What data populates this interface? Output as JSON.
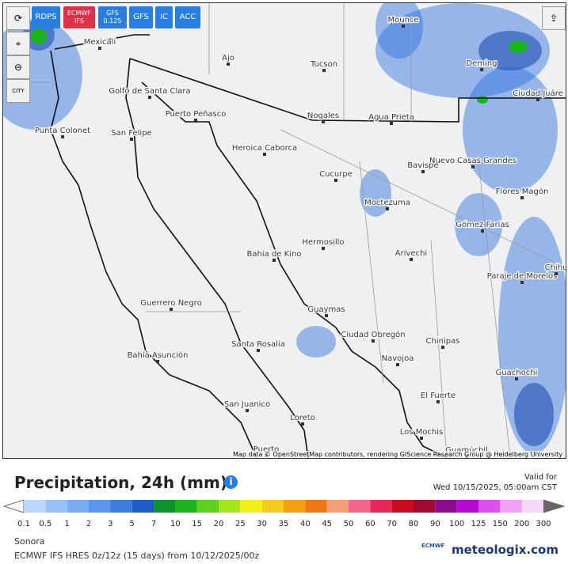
{
  "toolbar": {
    "buttons": [
      "RDPS",
      "ECMWF IFS",
      "GFS 0.125",
      "GFS",
      "IC",
      "ACC"
    ],
    "city_button": "CITY"
  },
  "map": {
    "cities": [
      "Mexicali",
      "Ajo",
      "Tucson",
      "Mounce",
      "Deming",
      "Ciudad Juáre",
      "Golfo de Santa Clara",
      "Puerto Peñasco",
      "Nogales",
      "Agua Prieta",
      "Punta Colonet",
      "San Felipe",
      "Heroica Caborca",
      "Nuevo Casas Grandes",
      "Bavispe",
      "Cucurpe",
      "Flores Magón",
      "Moctezuma",
      "Gómez Farías",
      "Hermosillo",
      "Bahía de Kino",
      "Arivechi",
      "Paraje de Morelos",
      "Chihu",
      "Guerrero Negro",
      "Guaymas",
      "Ciudad Obregón",
      "Chinipas",
      "Bahía Asunción",
      "Santa Rosalía",
      "Navojoa",
      "Guachochi",
      "El Fuerte",
      "San Juanico",
      "Loreto",
      "Los Mochis",
      "Guamúchil",
      "Puerto"
    ],
    "attribution": "Map data © OpenStreetMap contributors, rendering GIScience Research Group @ Heidelberg University"
  },
  "legend": {
    "title": "Precipitation, 24h (mm)",
    "info": "i",
    "valid_label": "Valid for",
    "valid_time": "Wed 10/15/2025, 05:00am CST",
    "scale": [
      {
        "label": "0.1",
        "color": "#b9d7fa"
      },
      {
        "label": "0.5",
        "color": "#96c3f5"
      },
      {
        "label": "1",
        "color": "#78aff0"
      },
      {
        "label": "2",
        "color": "#5a96eb"
      },
      {
        "label": "3",
        "color": "#3c7de1"
      },
      {
        "label": "5",
        "color": "#1e5ac8"
      },
      {
        "label": "7",
        "color": "#0a9628"
      },
      {
        "label": "10",
        "color": "#19b419"
      },
      {
        "label": "15",
        "color": "#5ad21e"
      },
      {
        "label": "20",
        "color": "#a5e61e"
      },
      {
        "label": "25",
        "color": "#f5f014"
      },
      {
        "label": "30",
        "color": "#f5cd1e"
      },
      {
        "label": "35",
        "color": "#f5a014"
      },
      {
        "label": "40",
        "color": "#f07814"
      },
      {
        "label": "45",
        "color": "#f5a078"
      },
      {
        "label": "50",
        "color": "#f0648c"
      },
      {
        "label": "60",
        "color": "#e6285a"
      },
      {
        "label": "70",
        "color": "#c80a1e"
      },
      {
        "label": "80",
        "color": "#a00a32"
      },
      {
        "label": "90",
        "color": "#8c0a8c"
      },
      {
        "label": "100",
        "color": "#b40ad2"
      },
      {
        "label": "125",
        "color": "#dc50f0"
      },
      {
        "label": "150",
        "color": "#f0a0f5"
      },
      {
        "label": "200",
        "color": "#f5d7fa"
      },
      {
        "label": "300",
        "color": "#c8c8c8"
      }
    ]
  },
  "footer": {
    "region": "Sonora",
    "model": "ECMWF IFS HRES 0z/12z (15 days) from 10/12/2025/00z",
    "brand": "meteologix.com",
    "brand_logo": "ECMWF"
  }
}
